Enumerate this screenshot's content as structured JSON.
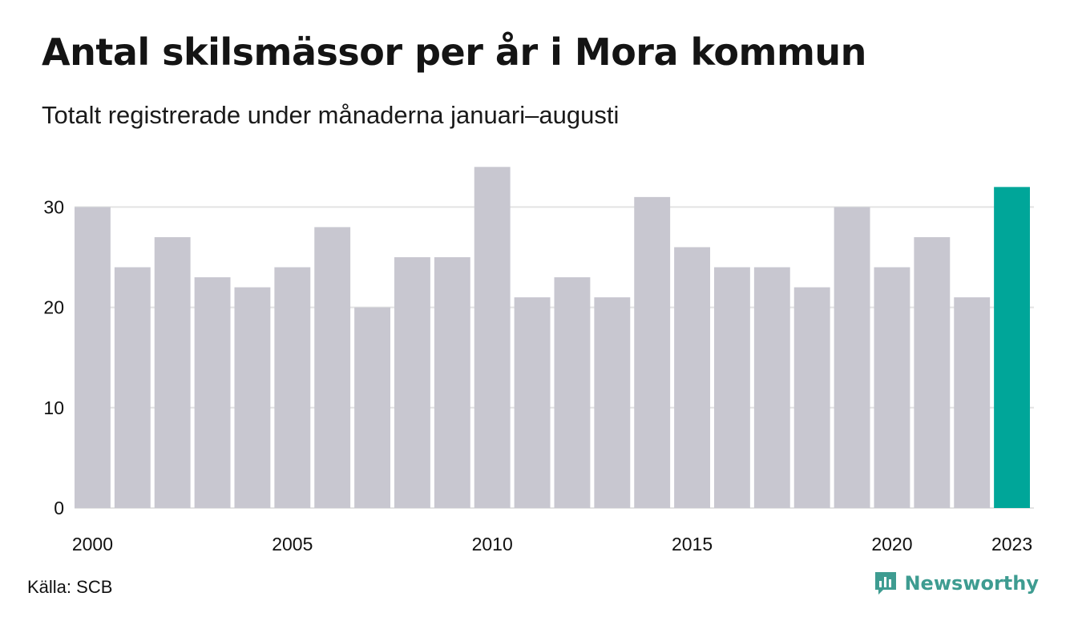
{
  "header": {
    "title": "Antal skilsmässor per år i Mora kommun",
    "subtitle": "Totalt registrerade under månaderna januari–augusti"
  },
  "footer": {
    "source": "Källa: SCB",
    "brand": "Newsworthy"
  },
  "colors": {
    "bar": "#c8c7d0",
    "highlight": "#00a699",
    "grid": "#e3e3e3",
    "brand": "#3e9c91"
  },
  "chart_data": {
    "type": "bar",
    "categories": [
      "2000",
      "2001",
      "2002",
      "2003",
      "2004",
      "2005",
      "2006",
      "2007",
      "2008",
      "2009",
      "2010",
      "2011",
      "2012",
      "2013",
      "2014",
      "2015",
      "2016",
      "2017",
      "2018",
      "2019",
      "2020",
      "2021",
      "2022",
      "2023"
    ],
    "values": [
      30,
      24,
      27,
      23,
      22,
      24,
      28,
      20,
      25,
      25,
      34,
      21,
      23,
      21,
      31,
      26,
      24,
      24,
      22,
      30,
      24,
      27,
      21,
      32
    ],
    "x_tick_labels": [
      "2000",
      "2005",
      "2010",
      "2015",
      "2020",
      "2023"
    ],
    "y_ticks": [
      0,
      10,
      20,
      30
    ],
    "ylim": [
      0,
      34
    ],
    "highlight_category": "2023",
    "grid": true
  }
}
